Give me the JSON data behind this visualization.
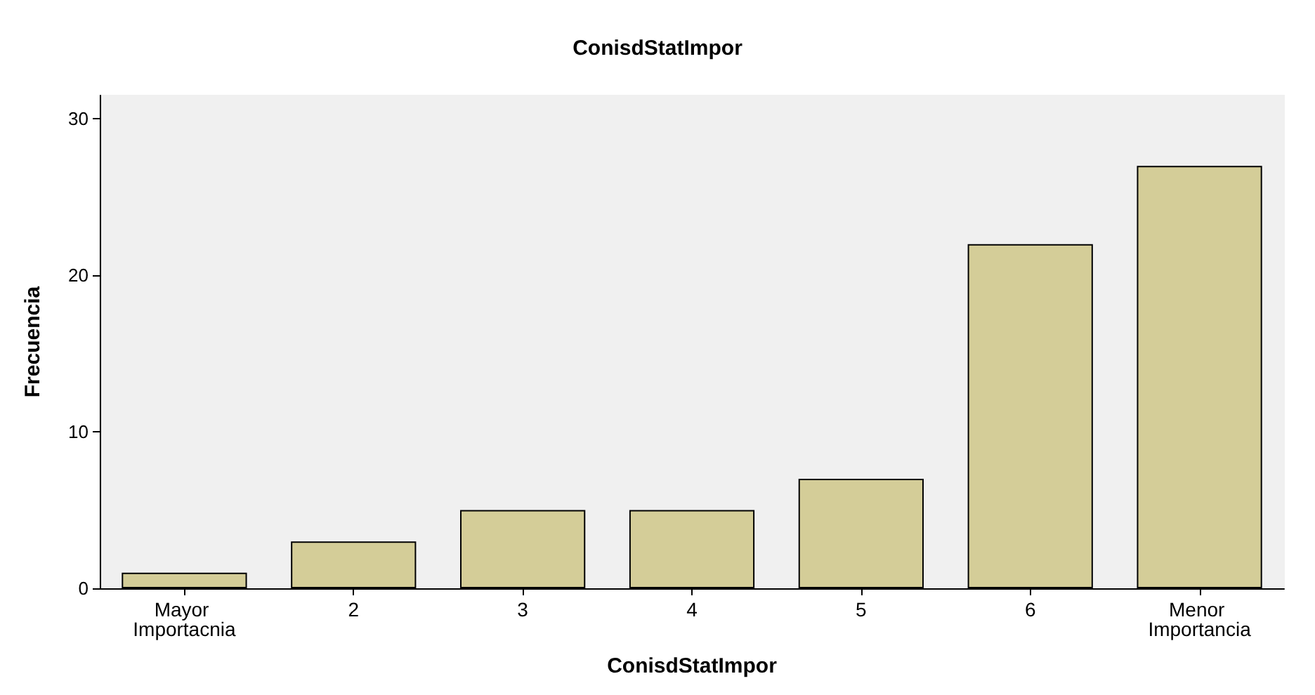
{
  "chart_data": {
    "type": "bar",
    "title": "ConisdStatImpor",
    "xlabel": "ConisdStatImpor",
    "ylabel": "Frecuencia",
    "categories": [
      "Mayor Importacnia",
      "2",
      "3",
      "4",
      "5",
      "6",
      "Menor Importancia"
    ],
    "values": [
      1,
      3,
      5,
      5,
      7,
      22,
      27
    ],
    "color": "#d4cd98",
    "ylim": [
      0,
      31.5
    ],
    "yticks": [
      0,
      10,
      20,
      30
    ],
    "grid": false
  }
}
